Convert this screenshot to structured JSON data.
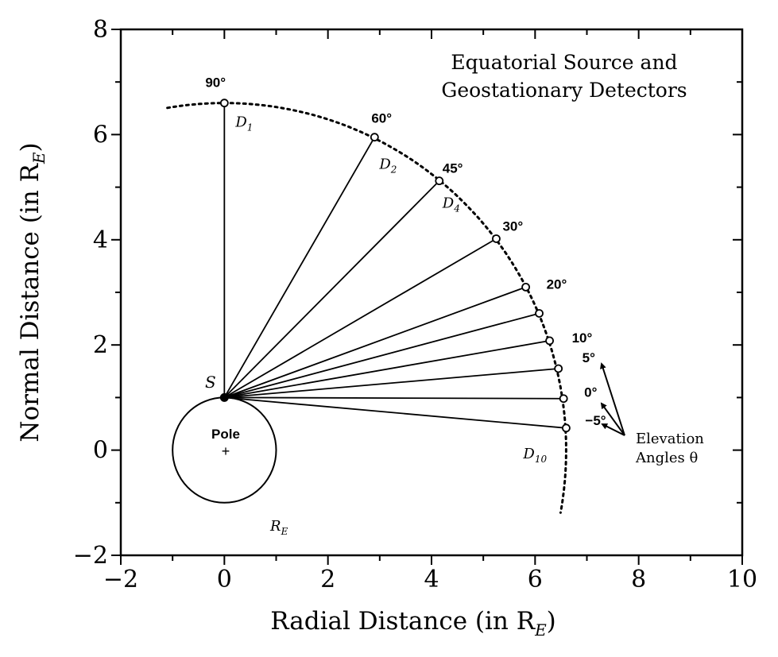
{
  "chart_data": {
    "type": "diagram",
    "title": [
      "Equatorial Source and",
      "Geostationary Detectors"
    ],
    "xlabel": "Radial Distance (in R",
    "xlabel_subscript": "E",
    "ylabel": "Normal Distance (in R",
    "ylabel_subscript": "E",
    "xlim": [
      -2,
      10
    ],
    "ylim": [
      -2,
      8
    ],
    "xticks": [
      "−2",
      "0",
      "2",
      "4",
      "6",
      "8",
      "10"
    ],
    "yticks": [
      "−2",
      "0",
      "2",
      "4",
      "6",
      "8"
    ],
    "earth": {
      "center": [
        0,
        0
      ],
      "radius": 1,
      "label": "Pole",
      "center_mark": "+",
      "radius_label": "R",
      "radius_label_sub": "E"
    },
    "source": {
      "label": "S",
      "x": 0,
      "y": 1
    },
    "detectors": [
      {
        "x": 0.0,
        "y": 6.6,
        "angle_label": "90°",
        "name": "D",
        "sub": "1"
      },
      {
        "x": 2.9,
        "y": 5.95,
        "angle_label": "60°",
        "name": "D",
        "sub": "2"
      },
      {
        "x": 4.15,
        "y": 5.12,
        "angle_label": "45°",
        "name": "D",
        "sub": "4"
      },
      {
        "x": 5.25,
        "y": 4.02,
        "angle_label": "30°"
      },
      {
        "x": 5.82,
        "y": 3.1,
        "angle_label": "20°"
      },
      {
        "x": 6.08,
        "y": 2.6
      },
      {
        "x": 6.28,
        "y": 2.08,
        "angle_label": "10°"
      },
      {
        "x": 6.45,
        "y": 1.55,
        "angle_label": "5°"
      },
      {
        "x": 6.55,
        "y": 0.98,
        "angle_label": "0°"
      },
      {
        "x": 6.6,
        "y": 0.42,
        "angle_label": "−5°",
        "name": "D",
        "sub": "10"
      }
    ],
    "orbit_arc": {
      "radius": 6.6,
      "start": [
        -1.1,
        6.5
      ],
      "end": [
        6.55,
        -1.2
      ]
    },
    "elevation_note": [
      "Elevation",
      "Angles θ"
    ]
  }
}
